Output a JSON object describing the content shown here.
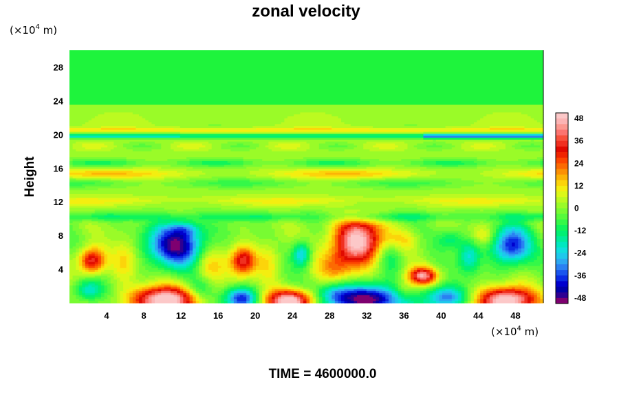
{
  "chart_data": {
    "type": "heatmap",
    "title": "zonal velocity",
    "ylabel": "Height",
    "xlabel": "",
    "y_unit": {
      "prefix": "(×10",
      "sup": "4",
      "suffix": " m)"
    },
    "x_unit": {
      "prefix": "(×10",
      "sup": "4",
      "suffix": " m)"
    },
    "xlim": [
      0,
      51
    ],
    "ylim": [
      0,
      30
    ],
    "xticks": [
      4,
      8,
      12,
      16,
      20,
      24,
      28,
      32,
      36,
      40,
      44,
      48
    ],
    "yticks": [
      4,
      8,
      12,
      16,
      20,
      24,
      28
    ],
    "colorbar": {
      "ticks": [
        48,
        36,
        24,
        12,
        0,
        -12,
        -24,
        -36,
        -48
      ],
      "range": [
        -51,
        51
      ],
      "levels": 34,
      "colors": [
        "#7e0070",
        "#2e0092",
        "#0000a8",
        "#0000ce",
        "#0b2be4",
        "#1a55ee",
        "#2a80f2",
        "#2ca8f2",
        "#1ec8ec",
        "#10dede",
        "#00e8c0",
        "#00ec9a",
        "#00f074",
        "#10f45a",
        "#34f848",
        "#56fa3c",
        "#78fb32",
        "#9afb28",
        "#bcfa20",
        "#dcf818",
        "#f4ee10",
        "#fcd40a",
        "#fcb406",
        "#fc9004",
        "#fc6a02",
        "#fc4600",
        "#f02400",
        "#e00a00",
        "#f03020",
        "#f8503c",
        "#fc7470",
        "#fc9890",
        "#fcb4b4",
        "#fcc8c8"
      ]
    },
    "features": [
      {
        "name": "uniform upper layer",
        "x": 25,
        "y": 25,
        "value": 2
      },
      {
        "name": "thin band near 20",
        "x": 46,
        "y": 19.7,
        "value": -38
      },
      {
        "name": "band near 20 west",
        "x": 6,
        "y": 19.8,
        "value": -22
      },
      {
        "name": "band near 20 mid",
        "x": 24,
        "y": 19.9,
        "value": -18
      },
      {
        "name": "band at 17",
        "x": 25,
        "y": 16.5,
        "value": -13
      },
      {
        "name": "band at 15",
        "x": 30,
        "y": 15.2,
        "value": 14
      },
      {
        "name": "band at 14",
        "x": 22,
        "y": 14.2,
        "value": -10
      },
      {
        "name": "band at 12",
        "x": 40,
        "y": 12,
        "value": 10
      },
      {
        "name": "band at 10",
        "x": 20,
        "y": 10.2,
        "value": -12
      },
      {
        "name": "cyclone west",
        "x": 11.5,
        "y": 6.8,
        "value": -44
      },
      {
        "name": "cyclone west core",
        "x": 12.5,
        "y": 8.6,
        "value": -50
      },
      {
        "name": "max upper",
        "x": 31,
        "y": 7.4,
        "value": 50
      },
      {
        "name": "cyclone east",
        "x": 47.5,
        "y": 6.8,
        "value": -38
      },
      {
        "name": "warm west",
        "x": 2.4,
        "y": 5,
        "value": 36
      },
      {
        "name": "warm mid",
        "x": 18.7,
        "y": 5,
        "value": 34
      },
      {
        "name": "warm 38",
        "x": 38,
        "y": 3.2,
        "value": 40
      },
      {
        "name": "cool 25",
        "x": 25,
        "y": 5.8,
        "value": -26
      },
      {
        "name": "cool 43",
        "x": 43,
        "y": 5.5,
        "value": -22
      },
      {
        "name": "surface max 10",
        "x": 10,
        "y": 0.3,
        "value": 50
      },
      {
        "name": "surface max 24",
        "x": 23.8,
        "y": 0.2,
        "value": 50
      },
      {
        "name": "surface max 47",
        "x": 47,
        "y": 0.3,
        "value": 50
      },
      {
        "name": "surface min 32",
        "x": 32,
        "y": 0.4,
        "value": -50
      },
      {
        "name": "surface min 19",
        "x": 18.5,
        "y": 0.5,
        "value": -38
      },
      {
        "name": "surface min 40",
        "x": 40.5,
        "y": 0.6,
        "value": -34
      },
      {
        "name": "surface min 2",
        "x": 2,
        "y": 1.5,
        "value": -22
      }
    ]
  },
  "footer": {
    "time_label": "TIME = 4600000.0"
  }
}
